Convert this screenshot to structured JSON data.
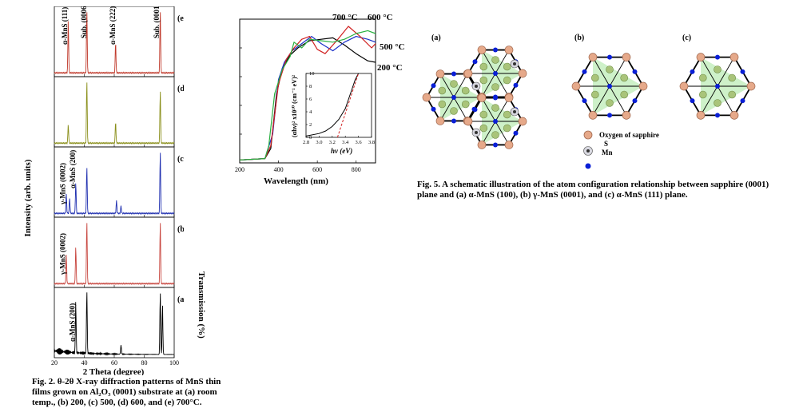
{
  "fig2": {
    "caption": "Fig. 2. θ-2θ X-ray diffraction patterns of MnS thin films grown on Al₂O₃ (0001) substrate at (a) room temp., (b) 200, (c) 500, (d) 600, and (e) 700°C.",
    "panel_letters": [
      "(e)",
      "(d)",
      "(c)",
      "(b)",
      "(a)"
    ],
    "peak_labels": {
      "e": [
        "α-MnS (111)",
        "Sub. (0006)",
        "α-MnS (222)",
        "Sub. (00012)"
      ],
      "c": [
        "γ-MnS (0002)",
        "α-MnS (200)"
      ],
      "b": [
        "γ-MnS (0002)"
      ],
      "a": [
        "α-MnS (200)"
      ]
    },
    "colors": {
      "e": "#c0392b",
      "d": "#8a8f1a",
      "c": "#1f2fb0",
      "b": "#c8463f",
      "a": "#000000"
    }
  },
  "fig4_uv": {
    "temp_labels": [
      "700 °C",
      "600 °C",
      "500 °C",
      "200 °C"
    ]
  },
  "fig5": {
    "panel_labels": [
      "(a)",
      "(b)",
      "(c)"
    ],
    "legend": [
      "Oxygen of sapphire",
      "S",
      "Mn"
    ],
    "caption": "Fig. 5. A schematic illustration of the atom configuration relationship between sapphire (0001) plane and (a) α-MnS (100), (b) γ-MnS (0001), and (c) α-MnS (111) plane.",
    "colors": {
      "oxygen": "#e6a98a",
      "sulfur": "#a9c47a",
      "mn": "#0a1fd6",
      "triangle": "#c9efc3"
    }
  },
  "chart_data": [
    {
      "type": "line",
      "title": "",
      "xlabel": "2 Theta (degree)",
      "ylabel": "Intensity (arb. units)",
      "xlim": [
        20,
        100
      ],
      "xticks": [
        20,
        40,
        60,
        80,
        100
      ],
      "series": [
        {
          "name": "(a)",
          "peaks": [
            [
              34.3,
              0.8
            ],
            [
              41.7,
              1.0
            ],
            [
              64.5,
              0.15
            ],
            [
              90.7,
              1.0
            ],
            [
              92.2,
              0.8
            ]
          ]
        },
        {
          "name": "(b)",
          "peaks": [
            [
              28.0,
              0.45
            ],
            [
              34.3,
              0.6
            ],
            [
              41.7,
              1.0
            ],
            [
              90.7,
              1.0
            ]
          ]
        },
        {
          "name": "(c)",
          "peaks": [
            [
              28.0,
              0.3
            ],
            [
              30.2,
              0.25
            ],
            [
              34.3,
              0.5
            ],
            [
              41.7,
              0.75
            ],
            [
              61.5,
              0.2
            ],
            [
              64.5,
              0.12
            ],
            [
              90.7,
              1.0
            ]
          ]
        },
        {
          "name": "(d)",
          "peaks": [
            [
              29.3,
              0.3
            ],
            [
              41.7,
              1.0
            ],
            [
              60.9,
              0.35
            ],
            [
              90.7,
              0.85
            ]
          ]
        },
        {
          "name": "(e)",
          "peaks": [
            [
              29.3,
              0.85
            ],
            [
              41.7,
              1.0
            ],
            [
              60.9,
              0.5
            ],
            [
              90.7,
              1.0
            ]
          ]
        }
      ]
    },
    {
      "type": "line",
      "title": "",
      "xlabel": "Wavelength (nm)",
      "ylabel": "Transmission (%)",
      "xlim": [
        200,
        900
      ],
      "ylim": [
        0,
        100
      ],
      "xticks": [
        200,
        400,
        600,
        800
      ],
      "yticks": [
        0,
        20,
        40,
        60,
        80,
        100
      ],
      "series": [
        {
          "name": "200 °C",
          "x": [
            200,
            330,
            360,
            390,
            420,
            460,
            500,
            560,
            620,
            680,
            740,
            800,
            860,
            900
          ],
          "y": [
            2,
            3,
            10,
            48,
            66,
            75,
            80,
            85,
            86,
            87,
            82,
            76,
            71,
            70
          ]
        },
        {
          "name": "500 °C",
          "x": [
            200,
            330,
            370,
            400,
            430,
            470,
            520,
            570,
            620,
            680,
            740,
            800,
            860,
            900
          ],
          "y": [
            2,
            3,
            20,
            58,
            70,
            78,
            83,
            88,
            83,
            78,
            84,
            88,
            86,
            84
          ]
        },
        {
          "name": "600 °C",
          "x": [
            200,
            330,
            360,
            400,
            440,
            480,
            520,
            560,
            600,
            640,
            700,
            760,
            820,
            880,
            900
          ],
          "y": [
            2,
            3,
            12,
            55,
            72,
            80,
            86,
            88,
            79,
            76,
            85,
            95,
            88,
            80,
            83
          ]
        },
        {
          "name": "700 °C",
          "x": [
            200,
            330,
            350,
            380,
            420,
            460,
            480,
            520,
            560,
            620,
            680,
            740,
            800,
            860,
            900
          ],
          "y": [
            2,
            3,
            12,
            48,
            65,
            74,
            84,
            80,
            86,
            85,
            84,
            86,
            90,
            92,
            90
          ]
        }
      ]
    },
    {
      "type": "line",
      "title": "",
      "xlabel": "hν (eV)",
      "ylabel": "(αhν)² x10¹⁰ (cm⁻¹ eV)²",
      "xlim": [
        2.8,
        3.8
      ],
      "ylim": [
        0,
        10
      ],
      "xticks": [
        2.8,
        3.0,
        3.2,
        3.4,
        3.6,
        3.8
      ],
      "yticks": [
        0,
        2,
        4,
        6,
        8,
        10
      ],
      "series": [
        {
          "name": "curve",
          "x": [
            2.8,
            3.0,
            3.1,
            3.2,
            3.3,
            3.4,
            3.45,
            3.5,
            3.55,
            3.6
          ],
          "y": [
            0.2,
            0.6,
            1.0,
            1.7,
            2.8,
            4.5,
            6.0,
            7.5,
            9.0,
            10
          ]
        },
        {
          "name": "fit",
          "x": [
            3.28,
            3.6
          ],
          "y": [
            0,
            10
          ]
        }
      ]
    }
  ]
}
